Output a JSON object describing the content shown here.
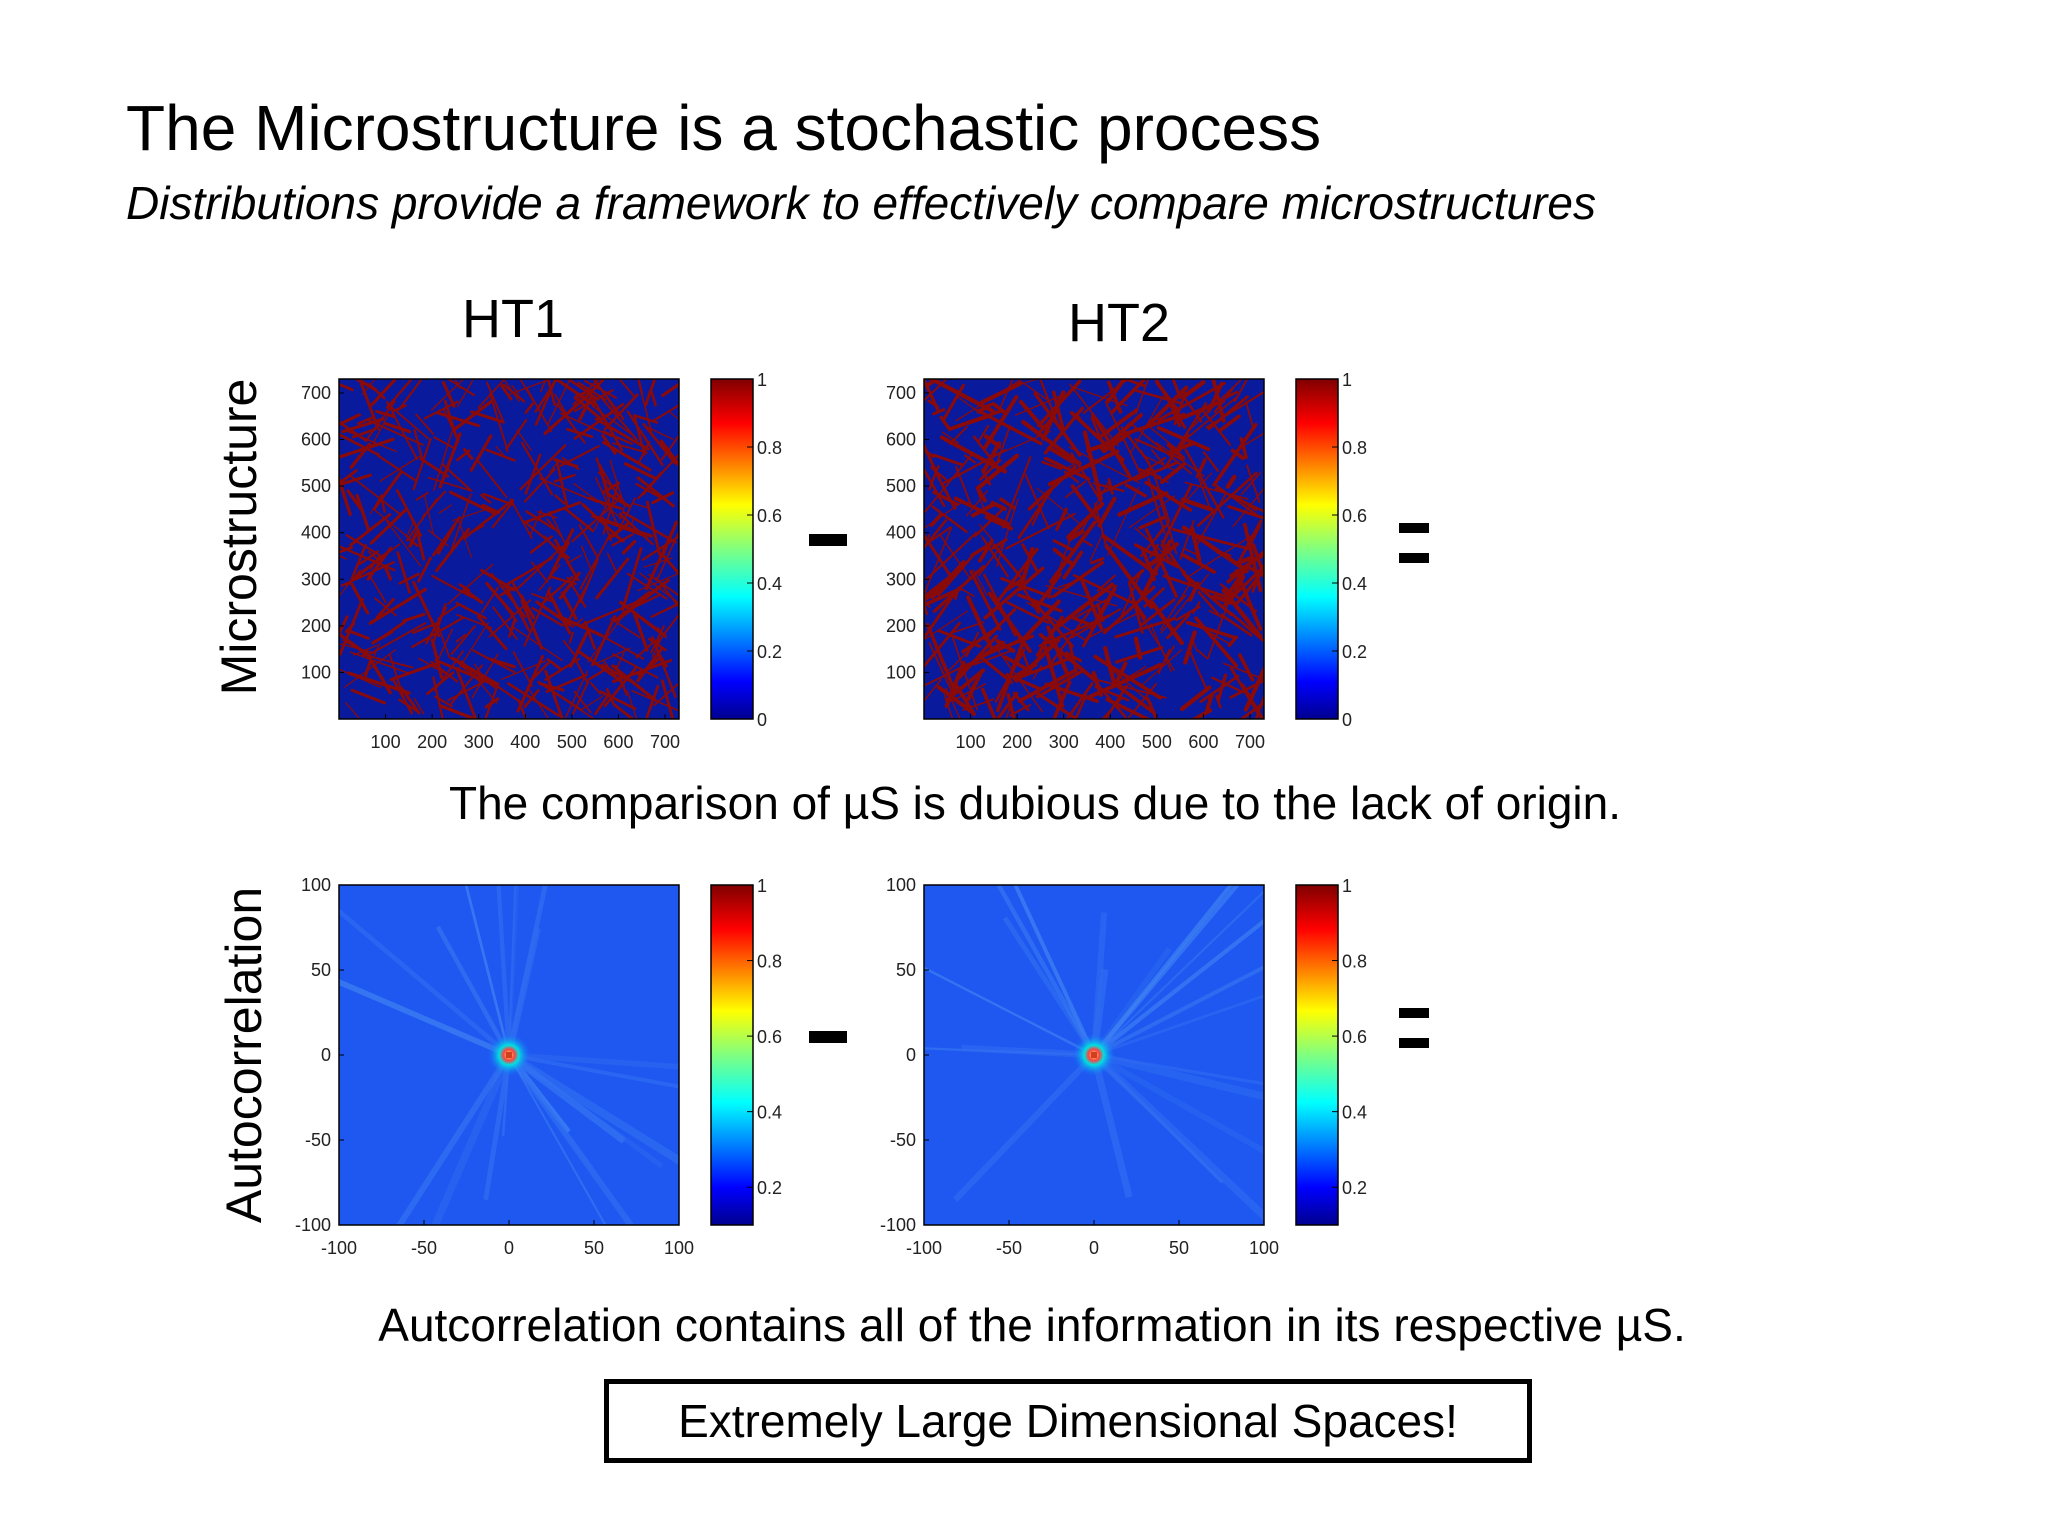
{
  "slide": {
    "title": "The Microstructure is a stochastic process",
    "subtitle": "Distributions provide a framework to effectively compare microstructures",
    "col_heads": [
      "HT1",
      "HT2"
    ],
    "row_labels": [
      "Microstructure",
      "Autocorrelation"
    ],
    "caption_1": "The comparison of µS is dubious due to the lack of origin.",
    "caption_2": "Autcorrelation contains all of the information in its respective µS.",
    "boxed_text": "Extremely Large Dimensional Spaces!",
    "operators": {
      "minus": "-",
      "equals": "="
    }
  },
  "chart_data": [
    {
      "type": "heatmap",
      "name": "",
      "panel": "HT1 microstructure",
      "xlim": [
        0,
        730
      ],
      "ylim": [
        0,
        730
      ],
      "xticks": [
        100,
        200,
        300,
        400,
        500,
        600,
        700
      ],
      "yticks": [
        100,
        200,
        300,
        400,
        500,
        600,
        700
      ],
      "colorbar": {
        "min": 0,
        "max": 1,
        "ticks": [
          0,
          0.2,
          0.4,
          0.6,
          0.8,
          1
        ]
      },
      "colormap": "jet"
    },
    {
      "type": "heatmap",
      "name": "",
      "panel": "HT2 microstructure",
      "xlim": [
        0,
        730
      ],
      "ylim": [
        0,
        730
      ],
      "xticks": [
        100,
        200,
        300,
        400,
        500,
        600,
        700
      ],
      "yticks": [
        100,
        200,
        300,
        400,
        500,
        600,
        700
      ],
      "colorbar": {
        "min": 0,
        "max": 1,
        "ticks": [
          0,
          0.2,
          0.4,
          0.6,
          0.8,
          1
        ]
      },
      "colormap": "jet"
    },
    {
      "type": "heatmap",
      "name": "",
      "panel": "HT1 autocorrelation",
      "xlim": [
        -100,
        100
      ],
      "ylim": [
        -100,
        100
      ],
      "xticks": [
        -100,
        -50,
        0,
        50,
        100
      ],
      "yticks": [
        -100,
        -50,
        0,
        50,
        100
      ],
      "colorbar": {
        "min": 0.1,
        "max": 1,
        "ticks": [
          0.2,
          0.4,
          0.6,
          0.8,
          1
        ]
      },
      "colormap": "jet",
      "peak": [
        0,
        0
      ]
    },
    {
      "type": "heatmap",
      "name": "",
      "panel": "HT2 autocorrelation",
      "xlim": [
        -100,
        100
      ],
      "ylim": [
        -100,
        100
      ],
      "xticks": [
        -100,
        -50,
        0,
        50,
        100
      ],
      "yticks": [
        -100,
        -50,
        0,
        50,
        100
      ],
      "colorbar": {
        "min": 0.1,
        "max": 1,
        "ticks": [
          0.2,
          0.4,
          0.6,
          0.8,
          1
        ]
      },
      "colormap": "jet",
      "peak": [
        0,
        0
      ]
    }
  ]
}
